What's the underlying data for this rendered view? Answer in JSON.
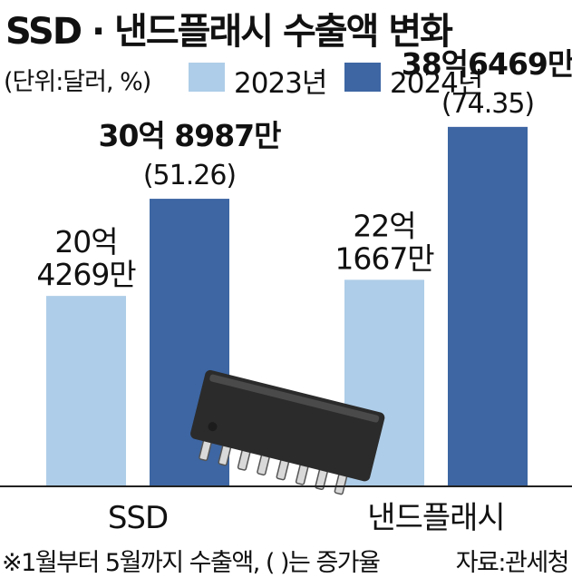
{
  "title": "SSD · 낸드플래시 수출액 변화",
  "unit_note": "(단위:달러, %)",
  "footnote": "※1월부터 5월까지 수출액, (   )는 증가율",
  "source": "자료:관세청",
  "colors": {
    "y2023": "#aecde8",
    "y2024": "#3d66a3",
    "axis": "#222222",
    "chip": "#2b2b2b"
  },
  "chart_data": {
    "type": "bar",
    "categories": [
      "SSD",
      "낸드플래시"
    ],
    "series": [
      {
        "name": "2023년",
        "values": [
          2042690000,
          2216670000
        ],
        "labels": [
          [
            "20억",
            "4269만"
          ],
          [
            "22억",
            "1667만"
          ]
        ]
      },
      {
        "name": "2024년",
        "values": [
          3089870000,
          3864690000
        ],
        "labels": [
          [
            "30억 8987만"
          ],
          [
            "38억6469만"
          ]
        ],
        "growth": [
          "(51.26)",
          "(74.35)"
        ]
      }
    ],
    "ylim": [
      0,
      4450000000
    ],
    "grid": false,
    "legend": "top"
  }
}
